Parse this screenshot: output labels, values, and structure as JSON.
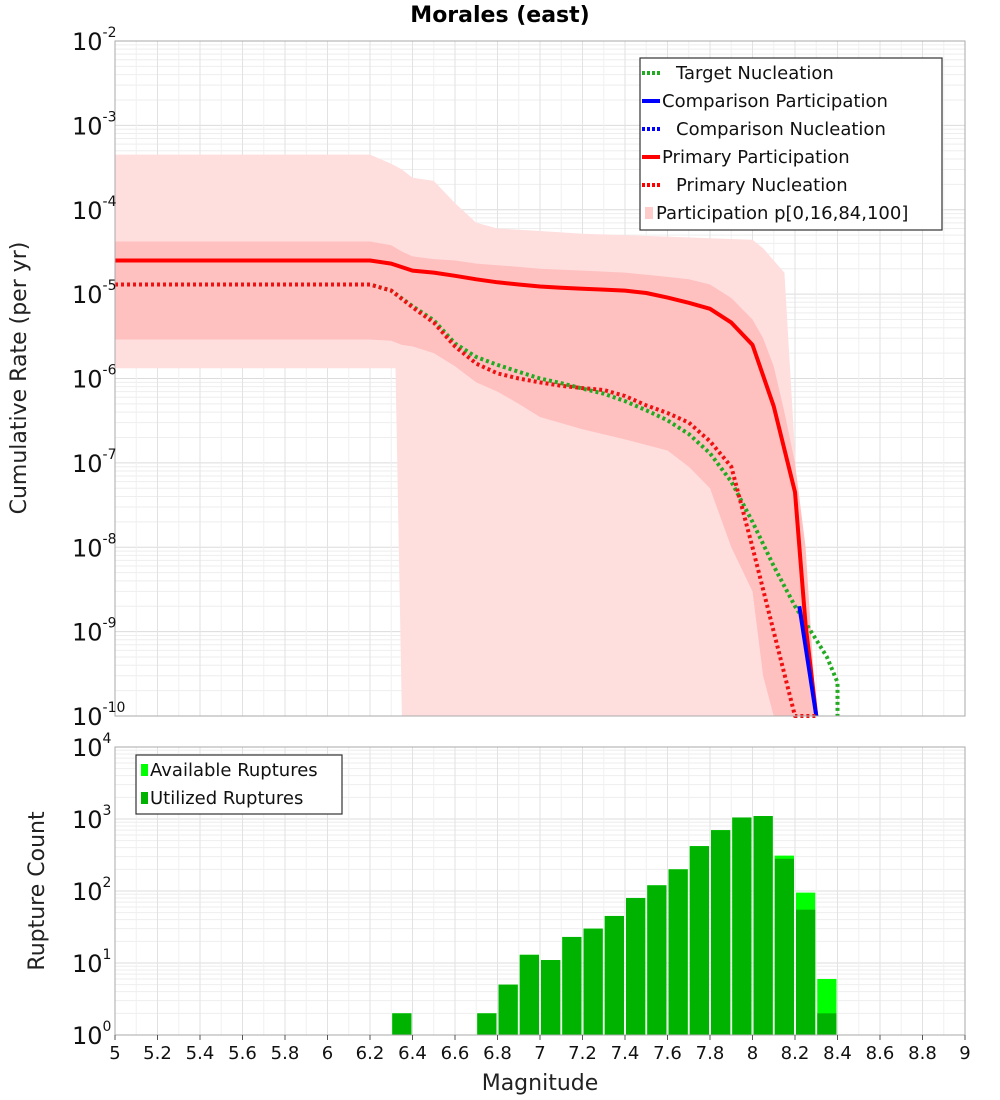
{
  "chart_data": [
    {
      "type": "line",
      "title": "Morales (east)",
      "xlabel": "Magnitude",
      "ylabel": "Cumulative Rate (per yr)",
      "xlim": [
        5,
        9
      ],
      "ylim_log10": [
        -10,
        -2
      ],
      "y_tick_base": "10",
      "y_tick_exponents": [
        "-2",
        "-3",
        "-4",
        "-5",
        "-6",
        "-7",
        "-8",
        "-9",
        "-10"
      ],
      "legend": [
        {
          "label": "Target Nucleation",
          "style": "dotted",
          "color": "#22aa22"
        },
        {
          "label": "Comparison Participation",
          "style": "solid",
          "color": "#0000ff"
        },
        {
          "label": "Comparison Nucleation",
          "style": "dotted",
          "color": "#0000ff"
        },
        {
          "label": "Primary Participation",
          "style": "solid",
          "color": "#ff0000"
        },
        {
          "label": "Primary Nucleation",
          "style": "dotted",
          "color": "#ff0000"
        },
        {
          "label": "Participation p[0,16,84,100]",
          "style": "fill",
          "color": "#ffcccc"
        }
      ],
      "bands": {
        "p0_p100": {
          "x": [
            5.0,
            6.2,
            6.3,
            6.32,
            6.35,
            6.4,
            6.5,
            6.6,
            6.7,
            6.8,
            6.9,
            7.0,
            7.2,
            7.4,
            7.6,
            7.8,
            8.0,
            8.05,
            8.1,
            8.15,
            8.2,
            8.25,
            8.3,
            8.35
          ],
          "lower": [
            1.32e-06,
            1.32e-06,
            1.32e-06,
            1.32e-06,
            1e-10,
            1e-10,
            1e-10,
            1e-10,
            1e-10,
            1e-10,
            1e-10,
            1e-10,
            1e-10,
            1e-10,
            1e-10,
            1e-10,
            1e-10,
            1e-10,
            1e-10,
            1e-10,
            1e-10,
            1e-10,
            1e-10,
            1e-10
          ],
          "upper": [
            0.00045,
            0.00045,
            0.00035,
            0.00033,
            0.0003,
            0.00024,
            0.00022,
            0.00012,
            7e-05,
            6e-05,
            5.8e-05,
            5.6e-05,
            5.2e-05,
            5e-05,
            4.8e-05,
            4.6e-05,
            4.4e-05,
            3.5e-05,
            2.5e-05,
            1.8e-05,
            1.3e-07,
            1e-10,
            1e-10,
            1e-10
          ]
        },
        "p16_p84": {
          "x": [
            5.0,
            6.2,
            6.3,
            6.35,
            6.4,
            6.5,
            6.6,
            6.7,
            6.8,
            6.9,
            7.0,
            7.2,
            7.4,
            7.6,
            7.7,
            7.8,
            7.9,
            8.0,
            8.05,
            8.1,
            8.15,
            8.2,
            8.25,
            8.3
          ],
          "lower": [
            2.9e-06,
            2.9e-06,
            2.8e-06,
            2.5e-06,
            2.4e-06,
            2e-06,
            1.4e-06,
            9e-07,
            7e-07,
            5e-07,
            3.5e-07,
            2.5e-07,
            1.9e-07,
            1.4e-07,
            9e-08,
            5e-08,
            1e-08,
            3e-09,
            3e-10,
            1e-10,
            1e-10,
            1e-10,
            1e-10,
            1e-10
          ],
          "upper": [
            4.2e-05,
            4.2e-05,
            3.8e-05,
            3.2e-05,
            2.8e-05,
            2.6e-05,
            2.5e-05,
            2.3e-05,
            2.2e-05,
            2.1e-05,
            2e-05,
            1.9e-05,
            1.8e-05,
            1.6e-05,
            1.5e-05,
            1.3e-05,
            9e-06,
            5e-06,
            3e-06,
            1.4e-06,
            4e-07,
            1e-07,
            1e-08,
            1e-10
          ]
        }
      },
      "series": [
        {
          "name": "Primary Participation",
          "x": [
            5.0,
            6.2,
            6.3,
            6.4,
            6.5,
            6.6,
            6.7,
            6.8,
            6.9,
            7.0,
            7.1,
            7.2,
            7.3,
            7.4,
            7.5,
            7.6,
            7.7,
            7.8,
            7.9,
            8.0,
            8.1,
            8.2,
            8.25,
            8.3
          ],
          "y": [
            2.5e-05,
            2.5e-05,
            2.3e-05,
            1.9e-05,
            1.8e-05,
            1.65e-05,
            1.5e-05,
            1.38e-05,
            1.3e-05,
            1.23e-05,
            1.19e-05,
            1.16e-05,
            1.13e-05,
            1.1e-05,
            1.03e-05,
            9.1e-06,
            7.9e-06,
            6.7e-06,
            4.6e-06,
            2.5e-06,
            4.7e-07,
            4.5e-08,
            1.2e-09,
            1e-10
          ]
        },
        {
          "name": "Primary Nucleation",
          "x": [
            5.0,
            6.2,
            6.3,
            6.4,
            6.5,
            6.6,
            6.7,
            6.8,
            6.9,
            7.0,
            7.1,
            7.2,
            7.3,
            7.4,
            7.5,
            7.6,
            7.7,
            7.8,
            7.9,
            8.0,
            8.1,
            8.2,
            8.25,
            8.3
          ],
          "y": [
            1.3e-05,
            1.3e-05,
            1.1e-05,
            7e-06,
            4.6e-06,
            2.4e-06,
            1.5e-06,
            1.15e-06,
            1e-06,
            9e-07,
            8.2e-07,
            7.7e-07,
            7.3e-07,
            6.2e-07,
            4.8e-07,
            3.9e-07,
            3e-07,
            1.8e-07,
            9e-08,
            1e-08,
            1e-09,
            1e-10,
            1e-10,
            1e-10
          ]
        },
        {
          "name": "Target Nucleation",
          "x": [
            5.0,
            6.2,
            6.3,
            6.4,
            6.5,
            6.6,
            6.7,
            6.8,
            6.9,
            7.0,
            7.1,
            7.2,
            7.3,
            7.4,
            7.5,
            7.6,
            7.7,
            7.8,
            7.9,
            8.0,
            8.1,
            8.2,
            8.3,
            8.35,
            8.4,
            8.4
          ],
          "y": [
            1.3e-05,
            1.3e-05,
            1.1e-05,
            7.2e-06,
            4.9e-06,
            2.6e-06,
            1.8e-06,
            1.45e-06,
            1.2e-06,
            1e-06,
            8.8e-07,
            7.6e-07,
            6.6e-07,
            5.4e-07,
            4.2e-07,
            3.2e-07,
            2.2e-07,
            1.3e-07,
            6e-08,
            2e-08,
            6e-09,
            2e-09,
            8e-10,
            5e-10,
            2.5e-10,
            1e-10
          ]
        },
        {
          "name": "Comparison Participation",
          "x": [
            8.22,
            8.3
          ],
          "y": [
            2e-09,
            1e-10
          ]
        }
      ]
    },
    {
      "type": "bar",
      "xlabel": "Magnitude",
      "ylabel": "Rupture Count",
      "xlim": [
        5,
        9
      ],
      "ylim_log10": [
        0,
        4
      ],
      "x_ticks": [
        "5",
        "5.2",
        "5.4",
        "5.6",
        "5.8",
        "6",
        "6.2",
        "6.4",
        "6.6",
        "6.8",
        "7",
        "7.2",
        "7.4",
        "7.6",
        "7.8",
        "8",
        "8.2",
        "8.4",
        "8.6",
        "8.8",
        "9"
      ],
      "y_tick_base": "10",
      "y_tick_exponents": [
        "4",
        "3",
        "2",
        "1",
        "0"
      ],
      "legend": [
        {
          "label": "Available Ruptures",
          "color": "#00ff00"
        },
        {
          "label": "Utilized Ruptures",
          "color": "#00b300"
        }
      ],
      "bin_width": 0.1,
      "bin_centers": [
        6.35,
        6.55,
        6.75,
        6.85,
        6.95,
        7.05,
        7.15,
        7.25,
        7.35,
        7.45,
        7.55,
        7.65,
        7.75,
        7.85,
        7.95,
        8.05,
        8.15,
        8.25,
        8.35
      ],
      "available": [
        2,
        1,
        2,
        5,
        13,
        11,
        23,
        30,
        45,
        80,
        120,
        200,
        420,
        700,
        1050,
        1100,
        310,
        95,
        6
      ],
      "utilized": [
        2,
        1,
        2,
        5,
        13,
        11,
        23,
        30,
        45,
        80,
        120,
        200,
        420,
        700,
        1050,
        1100,
        280,
        55,
        2
      ]
    }
  ]
}
